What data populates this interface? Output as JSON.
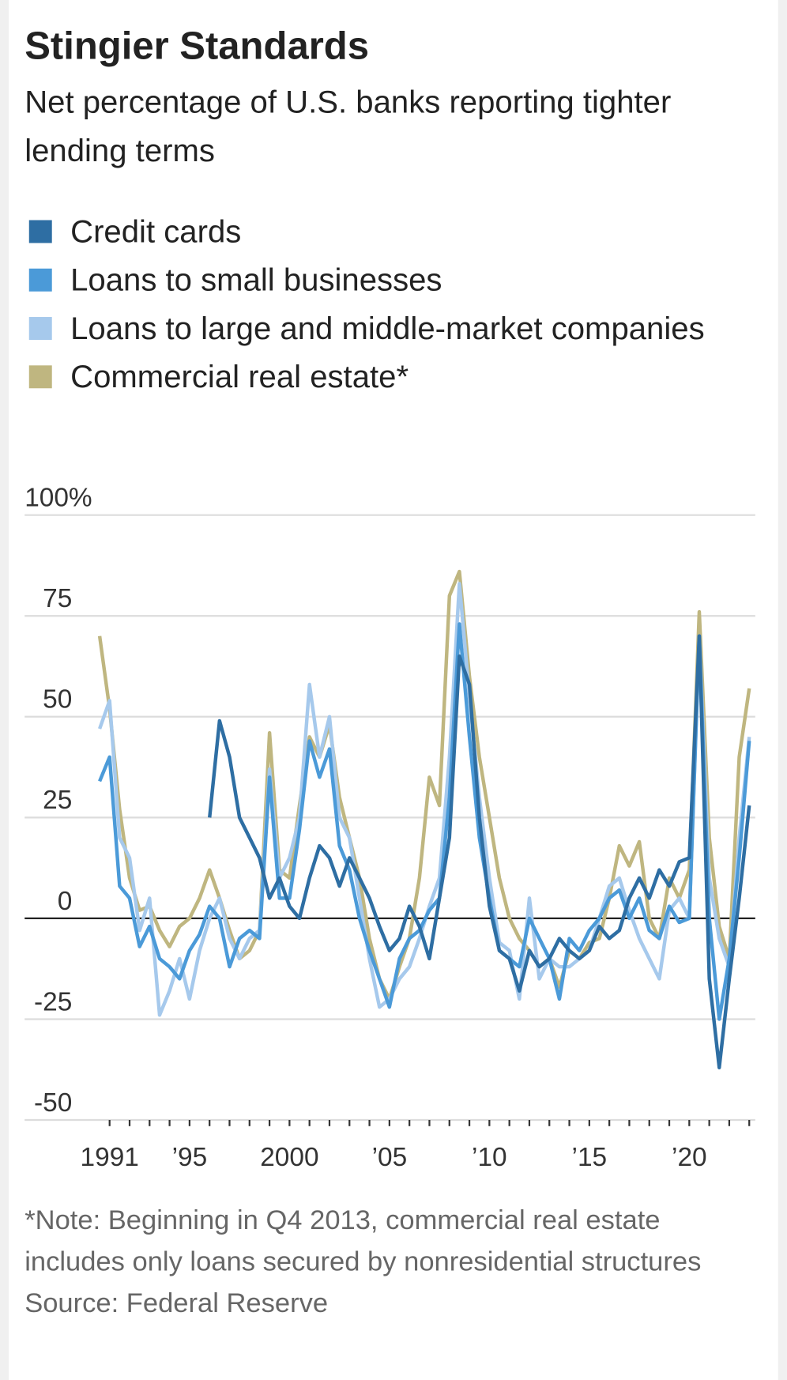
{
  "chart_data": {
    "type": "line",
    "title": "Stingier Standards",
    "subtitle": "Net percentage of U.S. banks reporting tighter lending terms",
    "note": "*Note: Beginning in Q4 2013, commercial real estate includes only loans secured by nonresidential structures",
    "source": "Source: Federal Reserve",
    "x": [
      1990.5,
      1991,
      1991.5,
      1992,
      1992.5,
      1993,
      1993.5,
      1994,
      1994.5,
      1995,
      1995.5,
      1996,
      1996.5,
      1997,
      1997.5,
      1998,
      1998.5,
      1999,
      1999.5,
      2000,
      2000.5,
      2001,
      2001.5,
      2002,
      2002.5,
      2003,
      2003.5,
      2004,
      2004.5,
      2005,
      2005.5,
      2006,
      2006.5,
      2007,
      2007.5,
      2008,
      2008.5,
      2009,
      2009.5,
      2010,
      2010.5,
      2011,
      2011.5,
      2012,
      2012.5,
      2013,
      2013.5,
      2014,
      2014.5,
      2015,
      2015.5,
      2016,
      2016.5,
      2017,
      2017.5,
      2018,
      2018.5,
      2019,
      2019.5,
      2020,
      2020.5,
      2021,
      2021.5,
      2022,
      2022.5,
      2023
    ],
    "series": [
      {
        "name": "Credit cards",
        "color": "#2e6ea3",
        "values": [
          null,
          null,
          null,
          null,
          null,
          null,
          null,
          null,
          null,
          null,
          null,
          25,
          49,
          40,
          25,
          20,
          15,
          5,
          10,
          3,
          0,
          10,
          18,
          15,
          8,
          15,
          10,
          5,
          -2,
          -8,
          -5,
          3,
          -2,
          -10,
          5,
          20,
          65,
          58,
          25,
          3,
          -8,
          -10,
          -18,
          -8,
          -12,
          -10,
          -5,
          -8,
          -10,
          -8,
          -2,
          -5,
          -3,
          5,
          10,
          5,
          12,
          8,
          14,
          15,
          70,
          -15,
          -37,
          -15,
          5,
          28
        ]
      },
      {
        "name": "Loans to small businesses",
        "color": "#4b9ad8",
        "values": [
          34,
          40,
          8,
          5,
          -7,
          -2,
          -10,
          -12,
          -15,
          -8,
          -4,
          3,
          0,
          -12,
          -5,
          -3,
          -5,
          35,
          5,
          5,
          22,
          44,
          35,
          42,
          18,
          12,
          0,
          -8,
          -15,
          -22,
          -10,
          -5,
          -3,
          2,
          5,
          30,
          73,
          45,
          20,
          5,
          -8,
          -10,
          -12,
          0,
          -5,
          -10,
          -20,
          -5,
          -8,
          -3,
          0,
          5,
          7,
          0,
          5,
          -3,
          -5,
          3,
          -1,
          0,
          70,
          0,
          -25,
          -10,
          15,
          44
        ]
      },
      {
        "name": "Loans to large and middle-market companies",
        "color": "#a6c9ec",
        "values": [
          47,
          54,
          20,
          15,
          -3,
          5,
          -24,
          -18,
          -10,
          -20,
          -8,
          0,
          5,
          -5,
          -10,
          -5,
          -3,
          37,
          10,
          15,
          25,
          58,
          40,
          50,
          25,
          20,
          5,
          -10,
          -22,
          -20,
          -15,
          -12,
          -5,
          3,
          10,
          40,
          83,
          55,
          30,
          10,
          -6,
          -8,
          -20,
          5,
          -15,
          -10,
          -12,
          -12,
          -10,
          -8,
          0,
          8,
          10,
          2,
          -5,
          -10,
          -15,
          2,
          5,
          0,
          70,
          10,
          -5,
          -12,
          20,
          45
        ]
      },
      {
        "name": "Commercial real estate*",
        "color": "#bfb680",
        "values": [
          70,
          52,
          27,
          10,
          2,
          3,
          -3,
          -7,
          -2,
          0,
          5,
          12,
          5,
          -3,
          -10,
          -8,
          -3,
          46,
          12,
          10,
          28,
          45,
          40,
          48,
          30,
          20,
          10,
          -5,
          -15,
          -20,
          -12,
          -5,
          10,
          35,
          28,
          80,
          86,
          60,
          40,
          25,
          10,
          0,
          -5,
          -8,
          -12,
          -10,
          -17,
          -8,
          -10,
          -6,
          -5,
          5,
          18,
          13,
          19,
          0,
          -5,
          10,
          5,
          12,
          76,
          20,
          -2,
          -10,
          40,
          57
        ]
      }
    ],
    "xlim": [
      1986.75,
      2023.3
    ],
    "xticks": [
      {
        "value": 1991,
        "label": "1991"
      },
      {
        "value": 1995,
        "label": "’95"
      },
      2000,
      {
        "value": 2005,
        "label": "’05"
      },
      {
        "value": 2010,
        "label": "’10"
      },
      {
        "value": 2015,
        "label": "’15"
      },
      {
        "value": 2020,
        "label": "’20"
      }
    ],
    "xminor_ticks": [
      1991,
      1992,
      1993,
      1994,
      1995,
      1996,
      1997,
      1998,
      1999,
      2000,
      2001,
      2002,
      2003,
      2004,
      2005,
      2006,
      2007,
      2008,
      2009,
      2010,
      2011,
      2012,
      2013,
      2014,
      2015,
      2016,
      2017,
      2018,
      2019,
      2020,
      2021,
      2022,
      2023
    ],
    "ylim": [
      -50,
      100
    ],
    "yticks": [
      -50,
      -25,
      0,
      25,
      50,
      75,
      {
        "value": 100,
        "label": "100%"
      }
    ],
    "grid": true
  }
}
